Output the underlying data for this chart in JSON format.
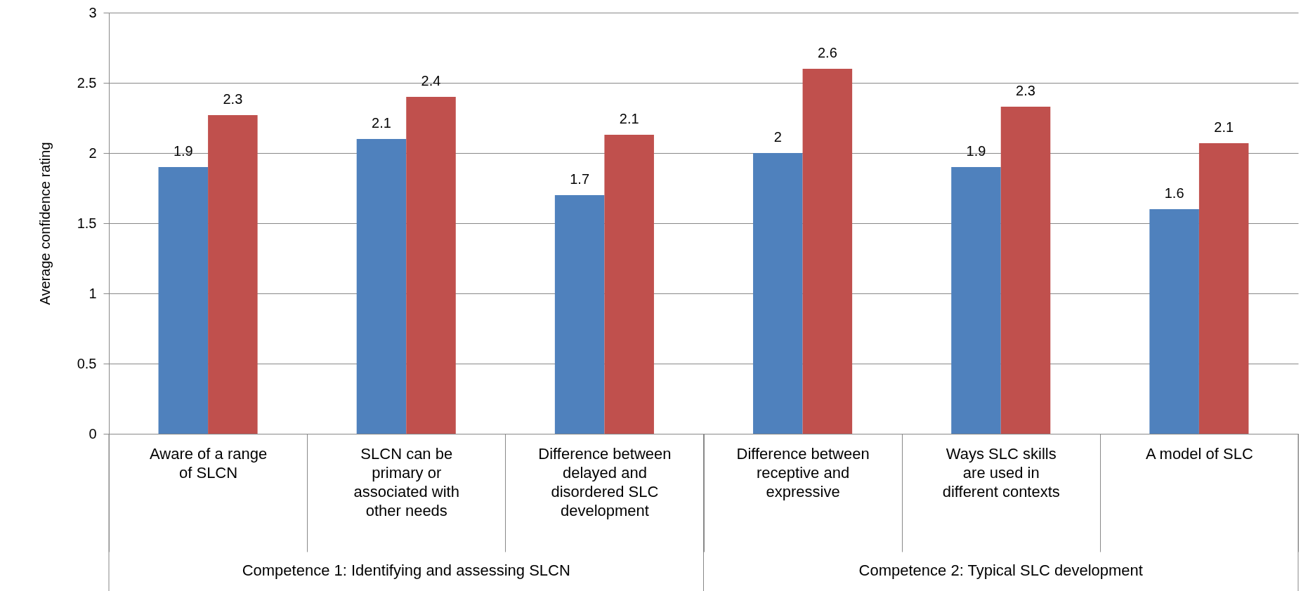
{
  "chart_data": {
    "type": "bar",
    "ylabel": "Average confidence rating",
    "categories": [
      "Aware of a  range of SLCN",
      "SLCN can be primary or associated with other needs",
      "Difference between delayed and disordered SLC development",
      "Difference between receptive and expressive",
      "Ways  SLC skills are used in different contexts",
      "A model of SLC"
    ],
    "series": [
      {
        "color": "#4f81bd",
        "values": [
          1.9,
          2.1,
          1.7,
          2.0,
          1.9,
          1.6
        ],
        "value_labels": [
          "1.9",
          "2.1",
          "1.7",
          "2",
          "1.9",
          "1.6"
        ]
      },
      {
        "color": "#c0504d",
        "values": [
          2.27,
          2.4,
          2.13,
          2.6,
          2.33,
          2.07
        ],
        "value_labels": [
          "2.3",
          "2.4",
          "2.1",
          "2.6",
          "2.3",
          "2.1"
        ]
      }
    ],
    "annotations": [
      "Competence 1: Identifying and assessing SLCN",
      "Competence 2: Typical SLC development"
    ],
    "ylim": [
      0,
      3
    ],
    "yticks": [
      0,
      0.5,
      1,
      1.5,
      2,
      2.5,
      3
    ],
    "grid": "y"
  }
}
